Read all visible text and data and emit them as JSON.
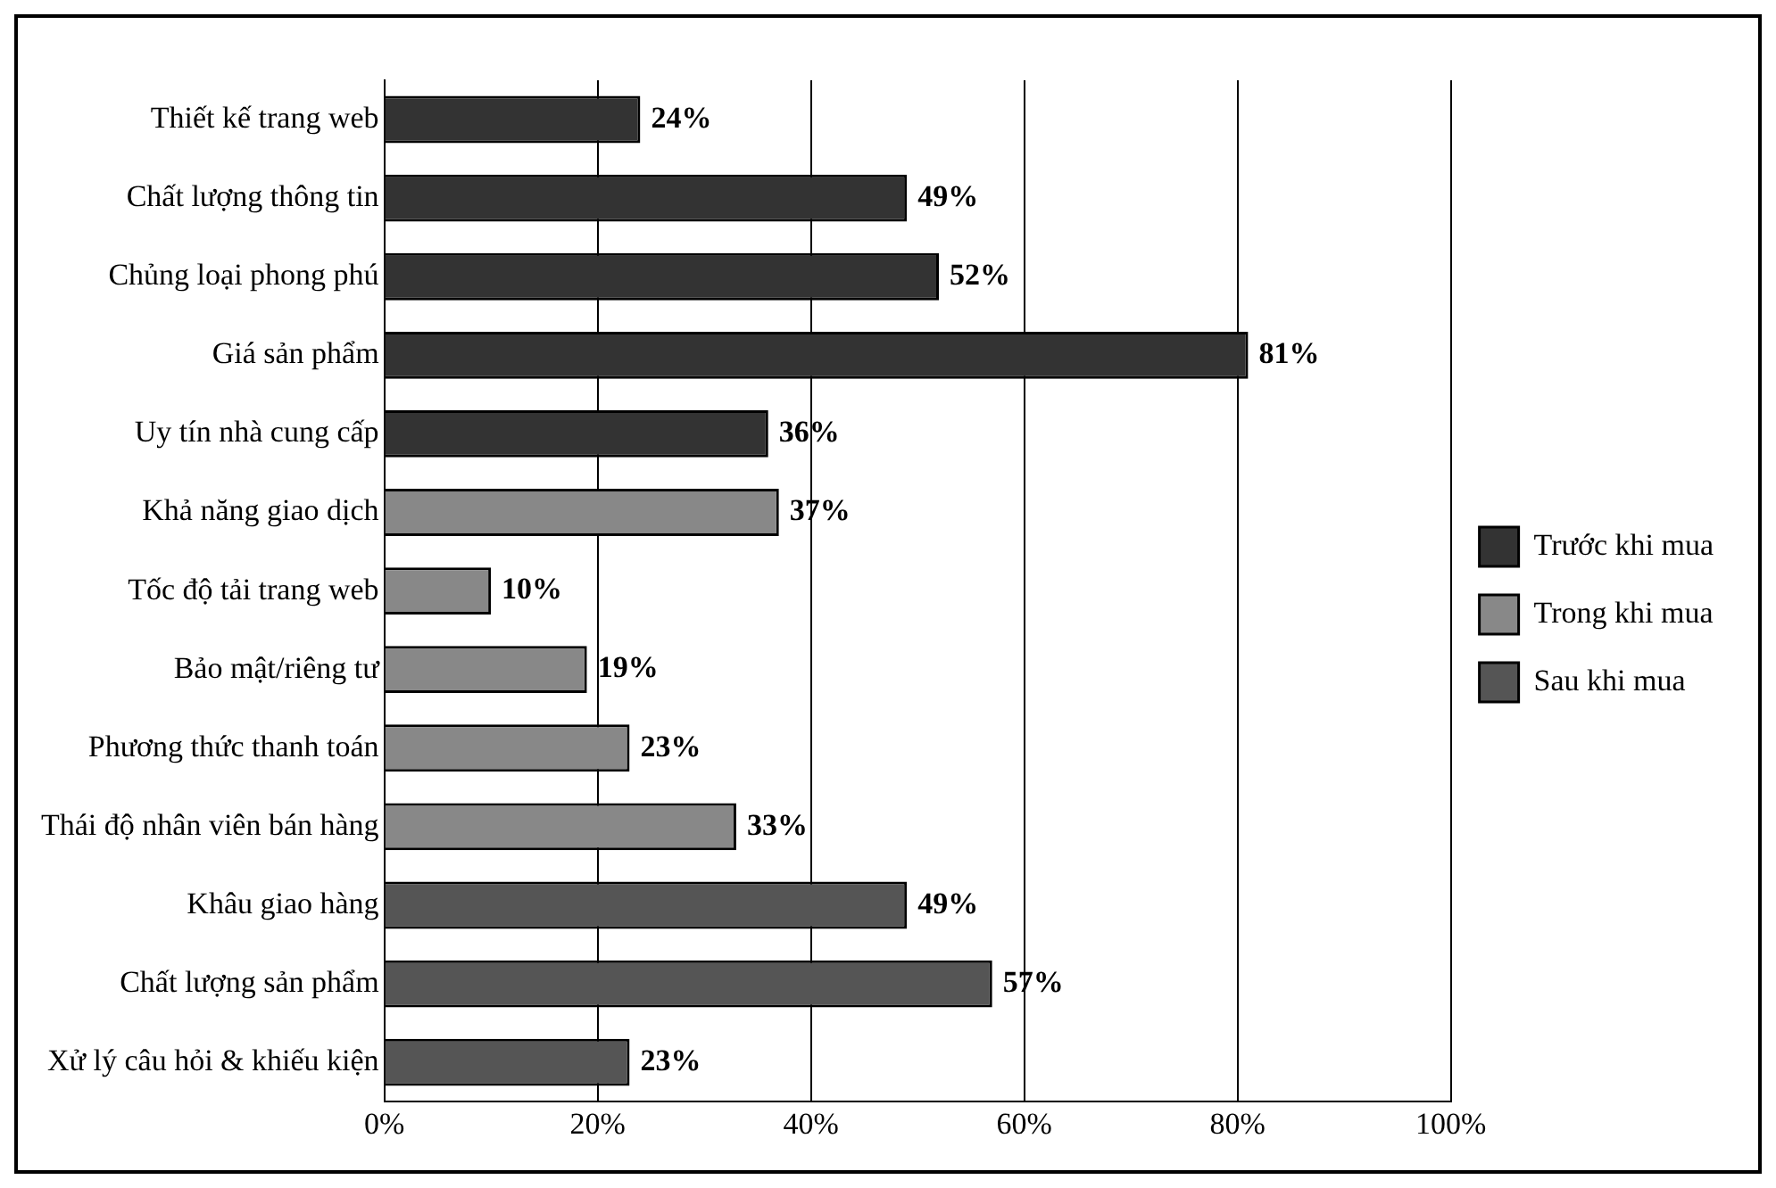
{
  "chart_data": {
    "type": "bar",
    "orientation": "horizontal",
    "categories": [
      "Thiết kế trang web",
      "Chất lượng thông tin",
      "Chủng loại phong phú",
      "Giá sản phẩm",
      "Uy tín nhà cung cấp",
      "Khả năng giao dịch",
      "Tốc độ tải trang web",
      "Bảo mật/riêng tư",
      "Phương thức thanh toán",
      "Thái độ nhân viên bán hàng",
      "Khâu giao hàng",
      "Chất lượng sản phẩm",
      "Xử lý câu hỏi & khiếu kiện"
    ],
    "series": [
      {
        "name": "Trước khi mua",
        "color": "#333333",
        "values": [
          24,
          49,
          52,
          81,
          36,
          null,
          null,
          null,
          null,
          null,
          null,
          null,
          null
        ],
        "value_labels": [
          "24%",
          "49%",
          "52%",
          "81%",
          "36%",
          null,
          null,
          null,
          null,
          null,
          null,
          null,
          null
        ]
      },
      {
        "name": "Trong khi mua",
        "color": "#888888",
        "values": [
          null,
          null,
          null,
          null,
          null,
          37,
          10,
          19,
          23,
          33,
          null,
          null,
          null
        ],
        "value_labels": [
          null,
          null,
          null,
          null,
          null,
          "37%",
          "10%",
          "19%",
          "23%",
          "33%",
          null,
          null,
          null
        ]
      },
      {
        "name": "Sau khi mua",
        "color": "#555555",
        "values": [
          null,
          null,
          null,
          null,
          null,
          null,
          null,
          null,
          null,
          null,
          49,
          57,
          23
        ],
        "value_labels": [
          null,
          null,
          null,
          null,
          null,
          null,
          null,
          null,
          null,
          null,
          "49%",
          "57%",
          "23%"
        ]
      }
    ],
    "xlim": [
      0,
      100
    ],
    "xticks": [
      {
        "value": 0,
        "label": "0%"
      },
      {
        "value": 20,
        "label": "20%"
      },
      {
        "value": 40,
        "label": "40%"
      },
      {
        "value": 60,
        "label": "60%"
      },
      {
        "value": 80,
        "label": "80%"
      },
      {
        "value": 100,
        "label": "100%"
      }
    ],
    "grid": "x",
    "legend": "right"
  }
}
